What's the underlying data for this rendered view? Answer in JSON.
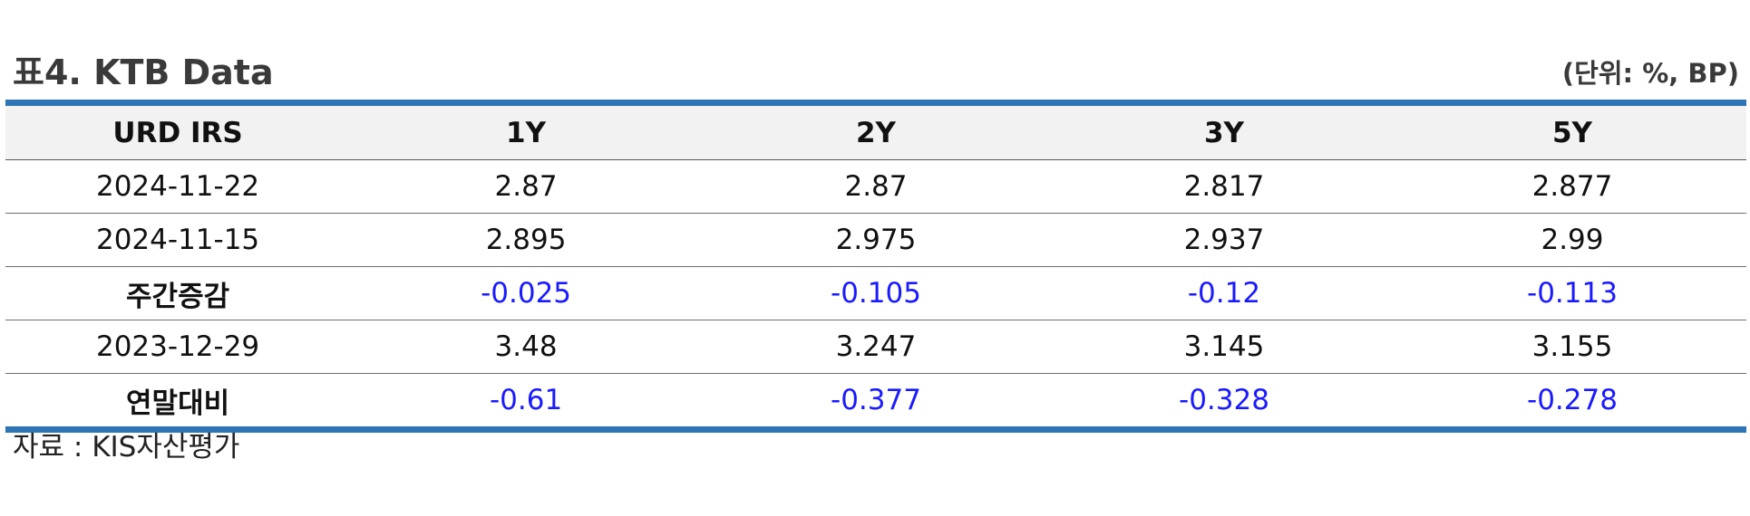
{
  "title": "표4. KTB Data",
  "unit_note": "(단위: %, BP)",
  "table": {
    "headers": [
      "URD IRS",
      "1Y",
      "2Y",
      "3Y",
      "5Y"
    ],
    "rows": [
      {
        "label": "2024-11-22",
        "values": [
          "2.87",
          "2.87",
          "2.817",
          "2.877"
        ]
      },
      {
        "label": "2024-11-15",
        "values": [
          "2.895",
          "2.975",
          "2.937",
          "2.99"
        ]
      },
      {
        "label": "주간증감",
        "values": [
          "-0.025",
          "-0.105",
          "-0.12",
          "-0.113"
        ]
      },
      {
        "label": "2023-12-29",
        "values": [
          "3.48",
          "3.247",
          "3.145",
          "3.155"
        ]
      },
      {
        "label": "연말대비",
        "values": [
          "-0.61",
          "-0.377",
          "-0.328",
          "-0.278"
        ]
      }
    ]
  },
  "colors": {
    "accent_border": "#2e75b6",
    "negative_value": "#1a1aff",
    "header_bg": "#f2f2f2"
  },
  "source": "자료 : KIS자산평가"
}
